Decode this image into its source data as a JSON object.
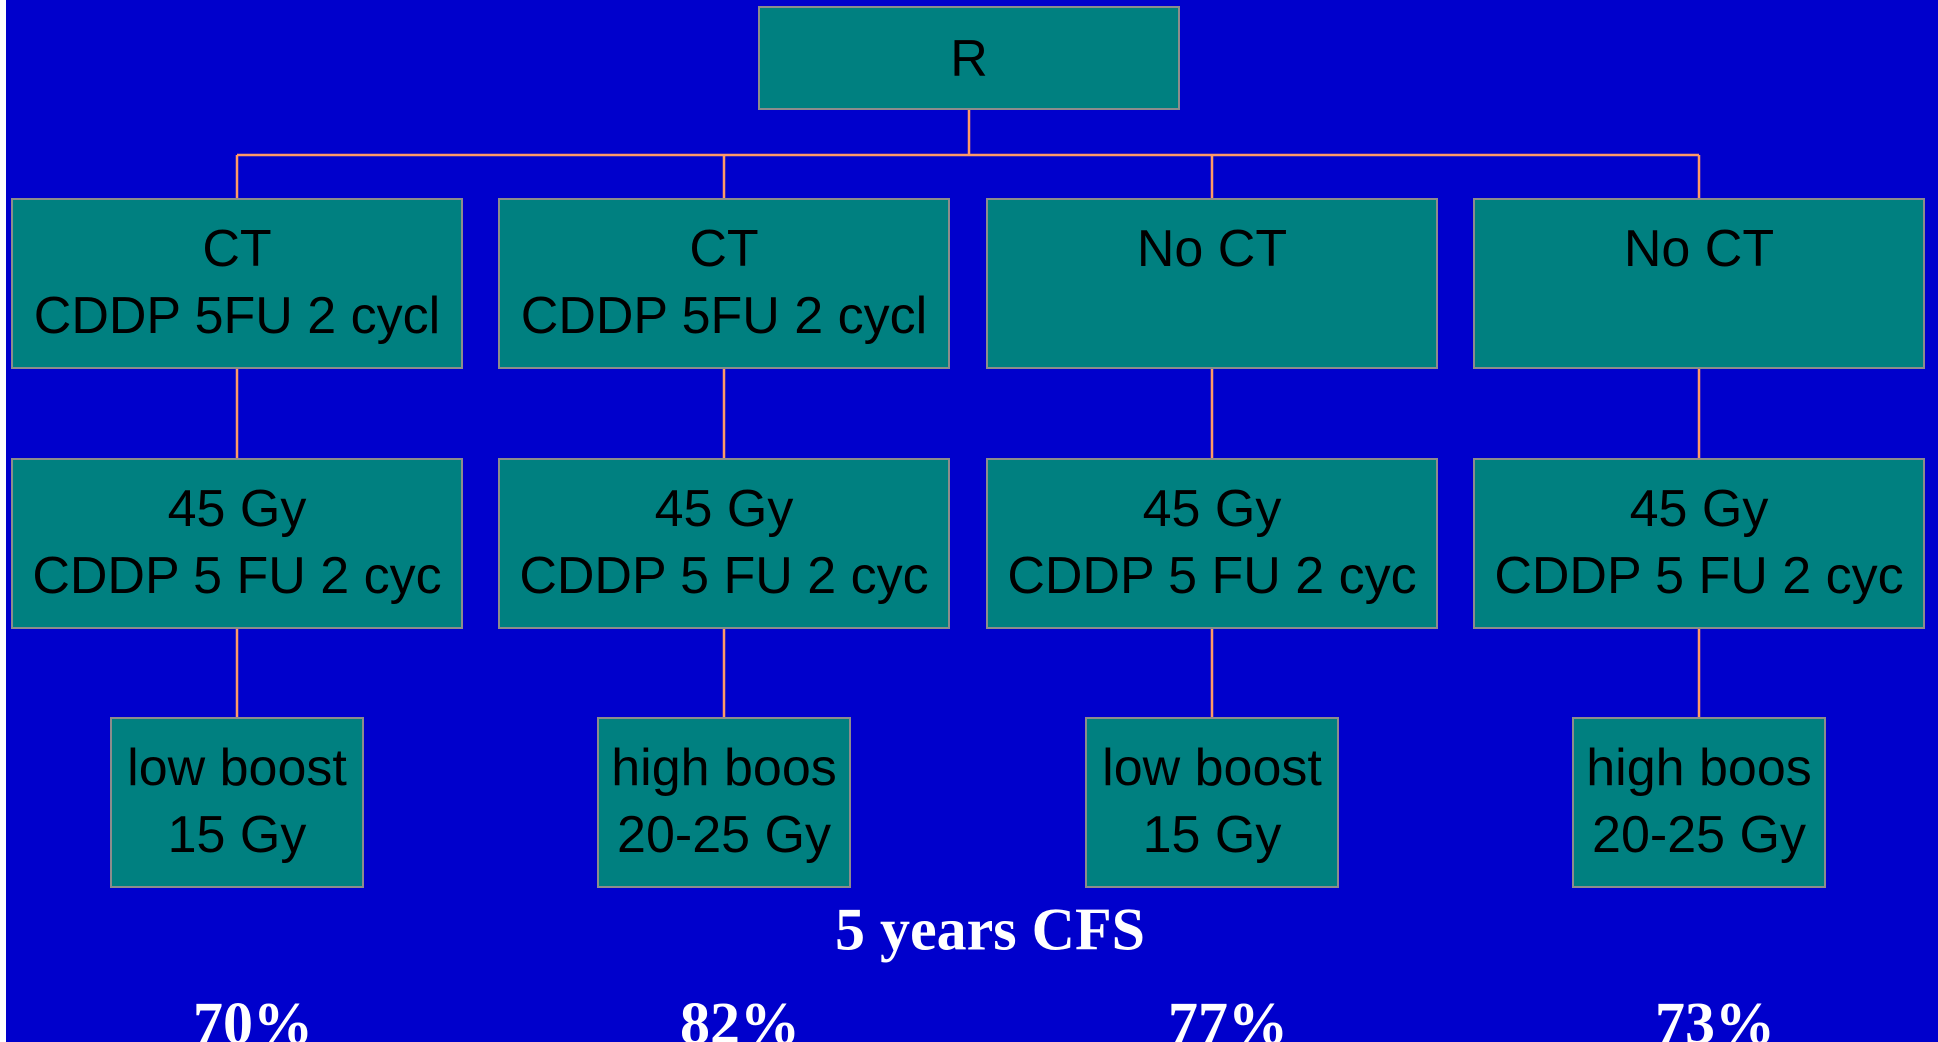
{
  "root": {
    "label": "R"
  },
  "arms": [
    {
      "allocation": [
        "CT",
        "CDDP 5FU 2 cycl"
      ],
      "radiotherapy": [
        "45 Gy",
        "CDDP 5 FU 2 cyc"
      ],
      "boost": [
        "low boost",
        "15 Gy"
      ],
      "result": "70%"
    },
    {
      "allocation": [
        "CT",
        "CDDP 5FU 2 cycl"
      ],
      "radiotherapy": [
        "45 Gy",
        "CDDP 5 FU 2 cyc"
      ],
      "boost": [
        "high boos",
        "20-25 Gy"
      ],
      "result": "82%"
    },
    {
      "allocation": [
        "No CT"
      ],
      "radiotherapy": [
        "45 Gy",
        "CDDP 5 FU 2 cyc"
      ],
      "boost": [
        "low boost",
        "15 Gy"
      ],
      "result": "77%"
    },
    {
      "allocation": [
        "No CT"
      ],
      "radiotherapy": [
        "45 Gy",
        "CDDP 5 FU 2 cyc"
      ],
      "boost": [
        "high boos",
        "20-25 Gy"
      ],
      "result": "73%"
    }
  ],
  "outcome": {
    "title": "5 years CFS"
  }
}
